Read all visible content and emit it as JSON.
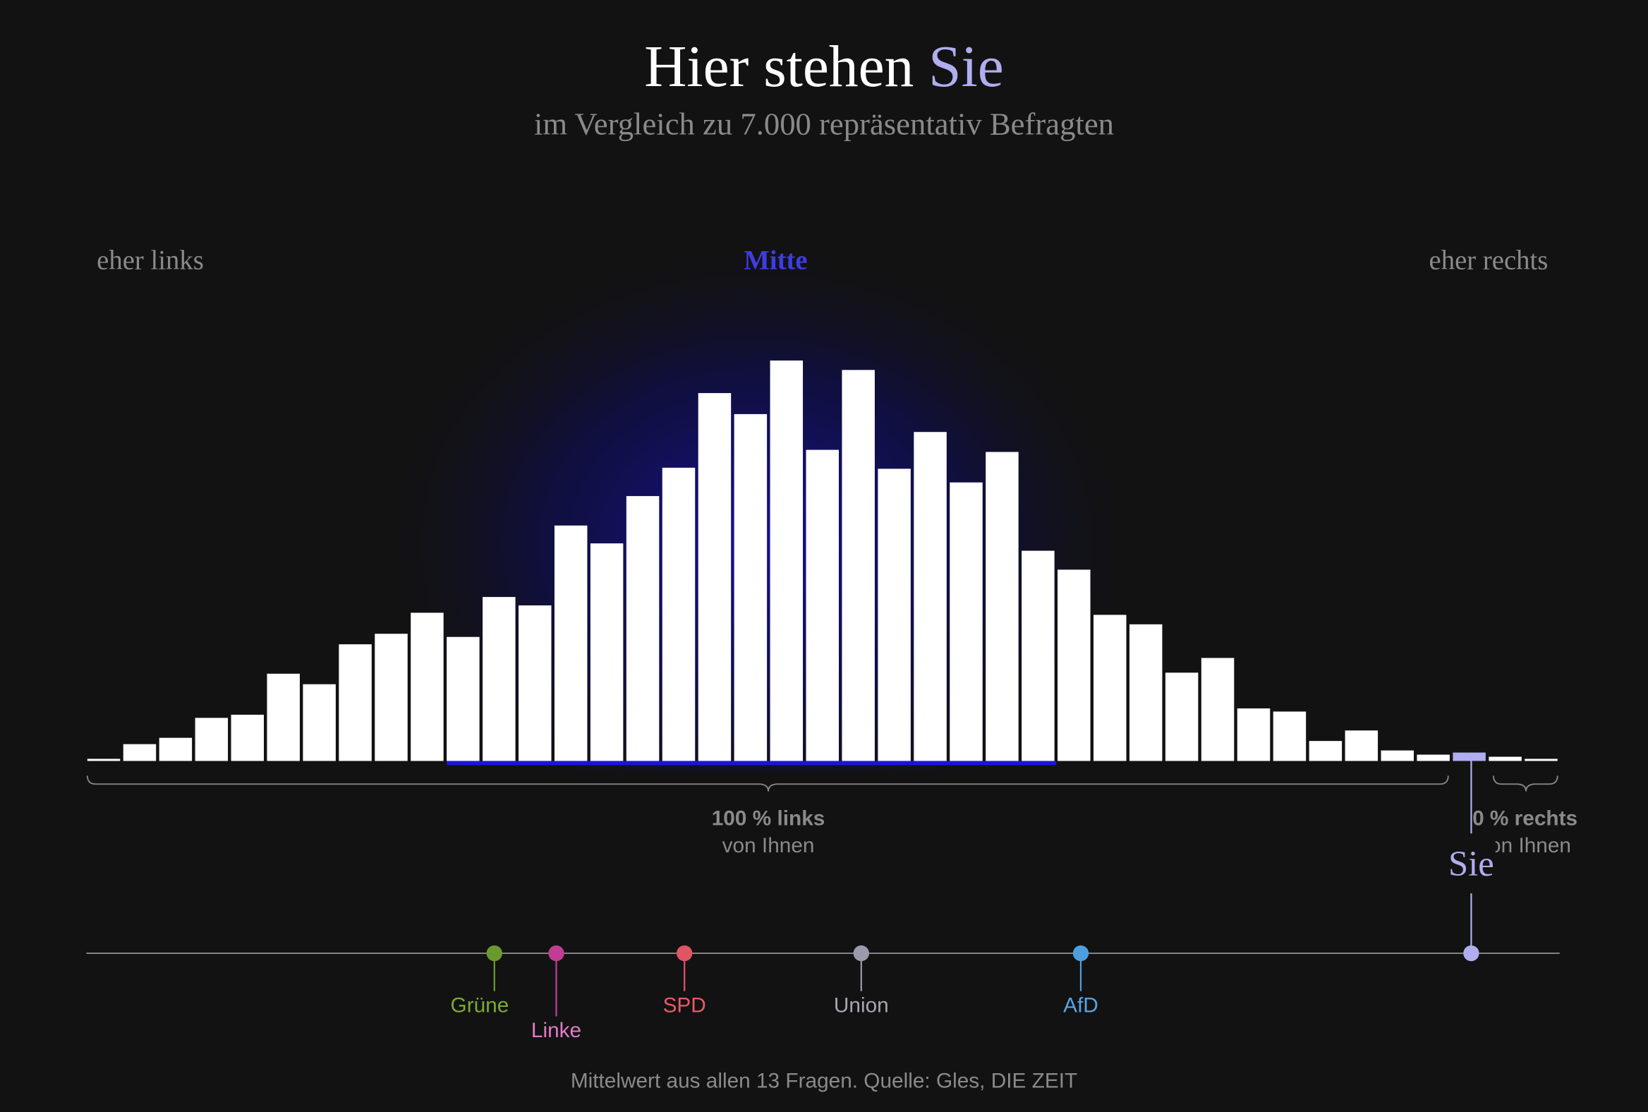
{
  "chart_data": {
    "type": "bar",
    "title_main": "Hier stehen ",
    "title_highlight": "Sie",
    "subtitle": "im Vergleich zu 7.000 repräsentativ Befragten",
    "axis_labels": {
      "left": "eher links",
      "center": "Mitte",
      "right": "eher rechts"
    },
    "bins": 41,
    "values": [
      2,
      16,
      22,
      41,
      44,
      83,
      73,
      111,
      121,
      141,
      118,
      156,
      148,
      224,
      207,
      252,
      279,
      350,
      330,
      381,
      296,
      372,
      278,
      313,
      265,
      294,
      200,
      182,
      139,
      130,
      84,
      98,
      50,
      47,
      19,
      29,
      10,
      6,
      8,
      4,
      2
    ],
    "highlight_bin_index": 38,
    "summary": [
      {
        "value": "100 % links",
        "sub": "von Ihnen"
      },
      {
        "value": "0 % rechts",
        "sub": "von Ihnen"
      }
    ],
    "you_label": "Sie",
    "scale_range": [
      0,
      100
    ],
    "markers": [
      {
        "name": "Grüne",
        "position": 27.7,
        "color": "#6a9a2e",
        "label_color": "#7aab35",
        "row": 0
      },
      {
        "name": "Linke",
        "position": 31.9,
        "color": "#c13d94",
        "label_color": "#e27ac8",
        "row": 1
      },
      {
        "name": "SPD",
        "position": 40.6,
        "color": "#e05563",
        "label_color": "#e65a66",
        "row": 0
      },
      {
        "name": "Union",
        "position": 52.6,
        "color": "#9a9aaa",
        "label_color": "#a6a6b4",
        "row": 0
      },
      {
        "name": "AfD",
        "position": 67.5,
        "color": "#4d9ee0",
        "label_color": "#55a5e6",
        "row": 0
      }
    ],
    "you_position": 94.0,
    "colors": {
      "bar": "#ffffff",
      "you": "#b0aef0",
      "mitte": "#3d3de0",
      "muted": "#8a8a8a",
      "background": "#121212"
    },
    "footnote": "Mittelwert aus allen 13 Fragen. Quelle: Gles, DIE ZEIT"
  }
}
